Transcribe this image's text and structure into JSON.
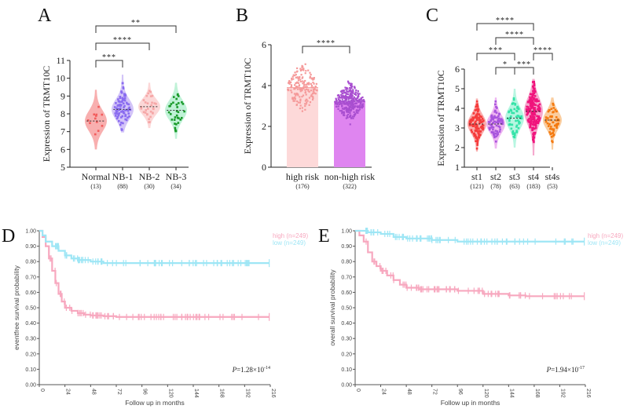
{
  "chart_data": [
    {
      "panel": "A",
      "type": "violin",
      "ylabel": "Expression of TRMT10C",
      "ylim": [
        5,
        11
      ],
      "yticks": [
        5,
        6,
        7,
        8,
        9,
        10,
        11
      ],
      "categories": [
        "Normal",
        "NB-1",
        "NB-2",
        "NB-3"
      ],
      "counts": [
        "(13)",
        "(88)",
        "(30)",
        "(34)"
      ],
      "colors": [
        "#f25c5c",
        "#8a6cf0",
        "#f5a6a6",
        "#1a9a2a"
      ],
      "fill_colors": [
        "#f7a1a1",
        "#cbbaf7",
        "#fbd0d0",
        "#b5f0d0"
      ],
      "medians": [
        7.6,
        8.25,
        8.4,
        8.2
      ],
      "ranges": [
        [
          6.0,
          9.35
        ],
        [
          6.95,
          10.2
        ],
        [
          7.2,
          9.75
        ],
        [
          6.6,
          9.75
        ]
      ],
      "comparisons": [
        {
          "from": 0,
          "to": 1,
          "label": "***"
        },
        {
          "from": 0,
          "to": 2,
          "label": "****"
        },
        {
          "from": 0,
          "to": 3,
          "label": "**"
        }
      ]
    },
    {
      "panel": "B",
      "type": "bar",
      "ylabel": "Expression of TRMT10C",
      "ylim": [
        0,
        6
      ],
      "yticks": [
        0,
        2,
        4,
        6
      ],
      "categories": [
        "high risk",
        "non-high risk"
      ],
      "counts": [
        "(176)",
        "(322)"
      ],
      "values": [
        3.9,
        3.2
      ],
      "bar_colors": [
        "#fdd9d9",
        "#df85f0"
      ],
      "point_colors": [
        "#f59a9a",
        "#a94fd0"
      ],
      "ranges": [
        [
          2.0,
          5.15
        ],
        [
          2.1,
          4.4
        ]
      ],
      "comparisons": [
        {
          "from": 0,
          "to": 1,
          "label": "****"
        }
      ]
    },
    {
      "panel": "C",
      "type": "violin",
      "ylabel": "Expression of TRMT10C",
      "ylim": [
        1,
        6
      ],
      "yticks": [
        1,
        2,
        3,
        4,
        5,
        6
      ],
      "categories": [
        "st1",
        "st2",
        "st3",
        "st4",
        "st4s"
      ],
      "counts": [
        "(121)",
        "(78)",
        "(63)",
        "(183)",
        "(53)"
      ],
      "colors": [
        "#f53c3c",
        "#a855dd",
        "#35e3a8",
        "#f0147c",
        "#f47a10"
      ],
      "fill_colors": [
        "#f9a0a0",
        "#eba8ee",
        "#aaf5dc",
        "#f59ac6",
        "#f9c48e"
      ],
      "medians": [
        3.2,
        3.2,
        3.5,
        3.85,
        3.4
      ],
      "ranges": [
        [
          1.8,
          4.5
        ],
        [
          1.95,
          4.55
        ],
        [
          2.0,
          5.0
        ],
        [
          1.6,
          5.5
        ],
        [
          1.9,
          4.55
        ]
      ],
      "comparisons": [
        {
          "from": 1,
          "to": 2,
          "label": "*"
        },
        {
          "from": 2,
          "to": 3,
          "label": "***"
        },
        {
          "from": 0,
          "to": 2,
          "label": "***"
        },
        {
          "from": 3,
          "to": 4,
          "label": "****"
        },
        {
          "from": 1,
          "to": 3,
          "label": "****"
        },
        {
          "from": 0,
          "to": 3,
          "label": "****"
        }
      ]
    },
    {
      "panel": "D",
      "type": "line",
      "ylabel": "eventfree survival probability",
      "xlabel": "Follow up in months",
      "xlim": [
        0,
        216
      ],
      "ylim": [
        0,
        1
      ],
      "xticks": [
        0,
        24,
        48,
        72,
        96,
        120,
        144,
        168,
        192,
        216
      ],
      "yticks": [
        "0.00",
        "0.10",
        "0.20",
        "0.30",
        "0.40",
        "0.50",
        "0.60",
        "0.70",
        "0.80",
        "0.90",
        "1.00"
      ],
      "pvalue": {
        "prefix": "P",
        "text": "=1.28×10",
        "exp": "-14"
      },
      "series": [
        {
          "name": "high (n=249)",
          "color": "#f7a8bf",
          "x": [
            0,
            3,
            6,
            9,
            12,
            15,
            18,
            21,
            24,
            30,
            36,
            42,
            48,
            60,
            72,
            96,
            120,
            160,
            190,
            215
          ],
          "y": [
            1.0,
            0.96,
            0.9,
            0.82,
            0.74,
            0.66,
            0.59,
            0.54,
            0.5,
            0.48,
            0.465,
            0.455,
            0.45,
            0.445,
            0.44,
            0.44,
            0.44,
            0.44,
            0.44,
            0.44
          ]
        },
        {
          "name": "low (n=249)",
          "color": "#9ee6f5",
          "x": [
            0,
            3,
            6,
            12,
            18,
            24,
            30,
            36,
            48,
            60,
            72,
            96,
            120,
            160,
            190,
            215
          ],
          "y": [
            1.0,
            0.97,
            0.93,
            0.9,
            0.87,
            0.84,
            0.82,
            0.81,
            0.8,
            0.79,
            0.79,
            0.79,
            0.79,
            0.79,
            0.79,
            0.79
          ]
        }
      ]
    },
    {
      "panel": "E",
      "type": "line",
      "ylabel": "overall survival probability",
      "xlabel": "Follow up in months",
      "xlim": [
        0,
        216
      ],
      "ylim": [
        0,
        1
      ],
      "xticks": [
        0,
        24,
        48,
        72,
        96,
        120,
        144,
        168,
        192,
        216
      ],
      "yticks": [
        "0.00",
        "0.10",
        "0.20",
        "0.30",
        "0.40",
        "0.50",
        "0.60",
        "0.70",
        "0.80",
        "0.90",
        "1.00"
      ],
      "pvalue": {
        "prefix": "P",
        "text": "=1.94×10",
        "exp": "-17"
      },
      "series": [
        {
          "name": "high (n=249)",
          "color": "#f7a8bf",
          "x": [
            0,
            4,
            8,
            12,
            16,
            20,
            24,
            30,
            36,
            42,
            48,
            60,
            72,
            96,
            120,
            144,
            160,
            215
          ],
          "y": [
            1.0,
            0.97,
            0.93,
            0.86,
            0.8,
            0.77,
            0.74,
            0.71,
            0.68,
            0.65,
            0.63,
            0.62,
            0.62,
            0.61,
            0.59,
            0.58,
            0.575,
            0.575
          ]
        },
        {
          "name": "low (n=249)",
          "color": "#9ee6f5",
          "x": [
            0,
            12,
            24,
            36,
            48,
            72,
            96,
            120,
            160,
            215
          ],
          "y": [
            1.0,
            0.99,
            0.98,
            0.96,
            0.95,
            0.94,
            0.93,
            0.93,
            0.93,
            0.93
          ]
        }
      ]
    }
  ],
  "panel_labels": [
    "A",
    "B",
    "C",
    "D",
    "E"
  ]
}
